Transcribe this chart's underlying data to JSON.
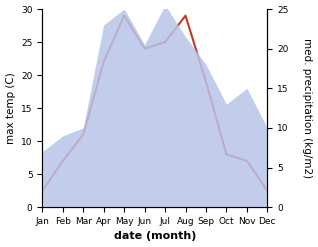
{
  "months": [
    "Jan",
    "Feb",
    "Mar",
    "Apr",
    "May",
    "Jun",
    "Jul",
    "Aug",
    "Sep",
    "Oct",
    "Nov",
    "Dec"
  ],
  "temperature": [
    2.5,
    7.0,
    11.0,
    22.0,
    29.0,
    24.0,
    25.0,
    29.0,
    19.0,
    8.0,
    7.0,
    2.5
  ],
  "precipitation": [
    7.0,
    9.0,
    10.0,
    23.0,
    25.0,
    20.5,
    25.5,
    21.5,
    18.0,
    13.0,
    15.0,
    10.0
  ],
  "temp_color": "#c0392b",
  "precip_fill_color": "#b8c4e8",
  "precip_alpha": 0.85,
  "temp_ylim": [
    0,
    30
  ],
  "precip_ylim": [
    0,
    25
  ],
  "temp_yticks": [
    0,
    5,
    10,
    15,
    20,
    25,
    30
  ],
  "precip_yticks": [
    0,
    5,
    10,
    15,
    20,
    25
  ],
  "xlabel": "date (month)",
  "ylabel_left": "max temp (C)",
  "ylabel_right": "med. precipitation (kg/m2)",
  "bg_color": "#ffffff",
  "label_fontsize": 7.5,
  "tick_fontsize": 6.5,
  "xlabel_fontsize": 8,
  "line_width": 1.5
}
